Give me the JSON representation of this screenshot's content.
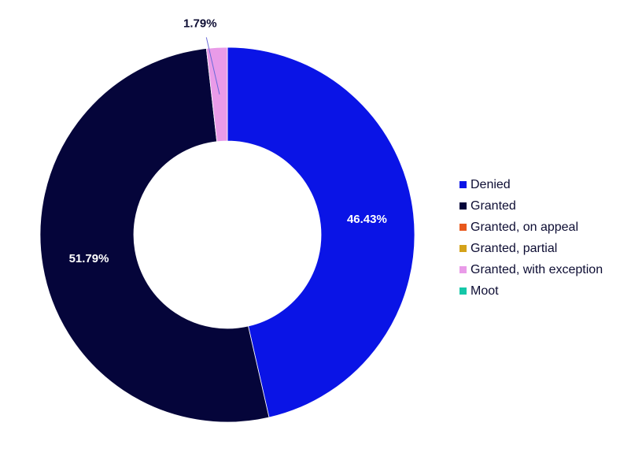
{
  "chart_data": {
    "type": "pie",
    "donut": true,
    "categories": [
      "Denied",
      "Granted",
      "Granted, on appeal",
      "Granted, partial",
      "Granted, with exception",
      "Moot"
    ],
    "values": [
      46.43,
      51.79,
      0,
      0,
      1.79,
      0
    ],
    "value_labels": [
      "46.43%",
      "51.79%",
      "",
      "",
      "1.79%",
      ""
    ],
    "colors": [
      "#0a14e6",
      "#05053a",
      "#e8581c",
      "#d4a21a",
      "#e99be8",
      "#14c7a8"
    ],
    "legend_position": "right",
    "title": ""
  }
}
